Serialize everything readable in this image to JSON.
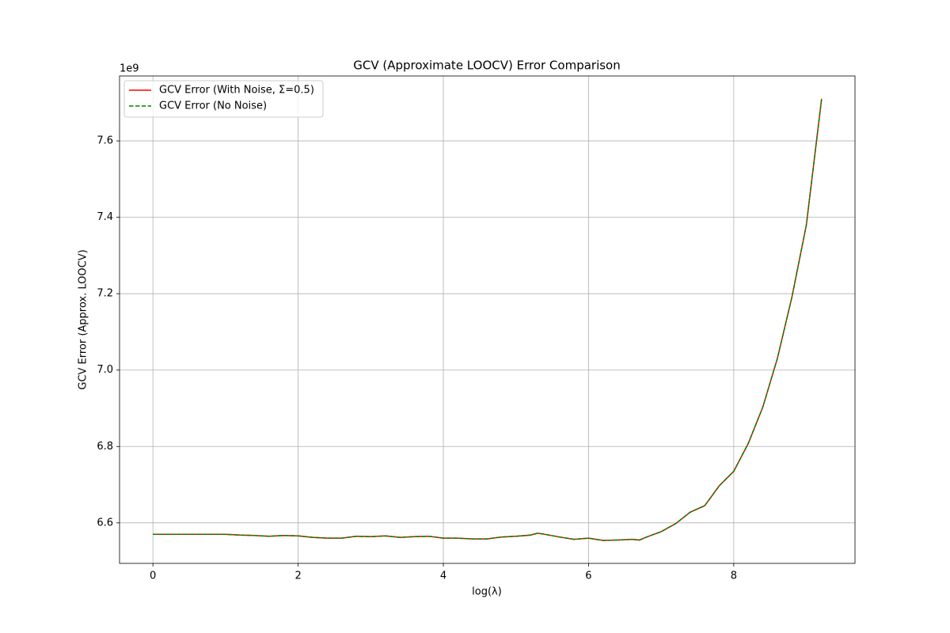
{
  "chart_data": {
    "type": "line",
    "title": "GCV (Approximate LOOCV) Error Comparison",
    "x_label": "log(λ)",
    "y_label": "GCV Error (Approx. LOOCV)",
    "y_offset_label": "1e9",
    "x": [
      0,
      0.2,
      0.4,
      0.6,
      0.8,
      1.0,
      1.2,
      1.4,
      1.6,
      1.8,
      2.0,
      2.2,
      2.4,
      2.6,
      2.8,
      3.0,
      3.2,
      3.4,
      3.6,
      3.8,
      4.0,
      4.2,
      4.4,
      4.6,
      4.8,
      5.0,
      5.2,
      5.3,
      5.4,
      5.6,
      5.8,
      6.0,
      6.2,
      6.4,
      6.6,
      6.7,
      6.8,
      7.0,
      7.2,
      7.4,
      7.6,
      7.8,
      8.0,
      8.2,
      8.4,
      8.6,
      8.8,
      9.0,
      9.21
    ],
    "series": [
      {
        "name": "GCV Error (With Noise, Σ=0.5)",
        "color": "#ff0000",
        "dash": false,
        "values": [
          6.57,
          6.57,
          6.57,
          6.57,
          6.57,
          6.57,
          6.568,
          6.567,
          6.565,
          6.567,
          6.566,
          6.562,
          6.56,
          6.56,
          6.565,
          6.564,
          6.566,
          6.562,
          6.564,
          6.565,
          6.56,
          6.56,
          6.558,
          6.558,
          6.563,
          6.565,
          6.568,
          6.573,
          6.57,
          6.563,
          6.557,
          6.56,
          6.554,
          6.555,
          6.557,
          6.555,
          6.563,
          6.577,
          6.598,
          6.628,
          6.645,
          6.697,
          6.735,
          6.808,
          6.903,
          7.03,
          7.19,
          7.38,
          7.71
        ]
      },
      {
        "name": "GCV Error (No Noise)",
        "color": "#008000",
        "dash": true,
        "values": [
          6.57,
          6.57,
          6.57,
          6.57,
          6.57,
          6.57,
          6.568,
          6.567,
          6.565,
          6.567,
          6.566,
          6.562,
          6.56,
          6.56,
          6.565,
          6.564,
          6.566,
          6.562,
          6.564,
          6.565,
          6.56,
          6.56,
          6.558,
          6.558,
          6.563,
          6.565,
          6.568,
          6.573,
          6.57,
          6.563,
          6.557,
          6.56,
          6.554,
          6.555,
          6.557,
          6.555,
          6.563,
          6.577,
          6.598,
          6.628,
          6.645,
          6.697,
          6.735,
          6.808,
          6.903,
          7.03,
          7.19,
          7.38,
          7.71
        ]
      }
    ],
    "xlim": [
      -0.46,
      9.67
    ],
    "ylim": [
      6.494,
      7.77
    ],
    "xticks": [
      0,
      2,
      4,
      6,
      8
    ],
    "yticks": [
      6.6,
      6.8,
      {
        "value": 7,
        "label": "7.0"
      },
      7.2,
      7.4,
      7.6
    ],
    "grid": true,
    "legend": "upper left"
  }
}
